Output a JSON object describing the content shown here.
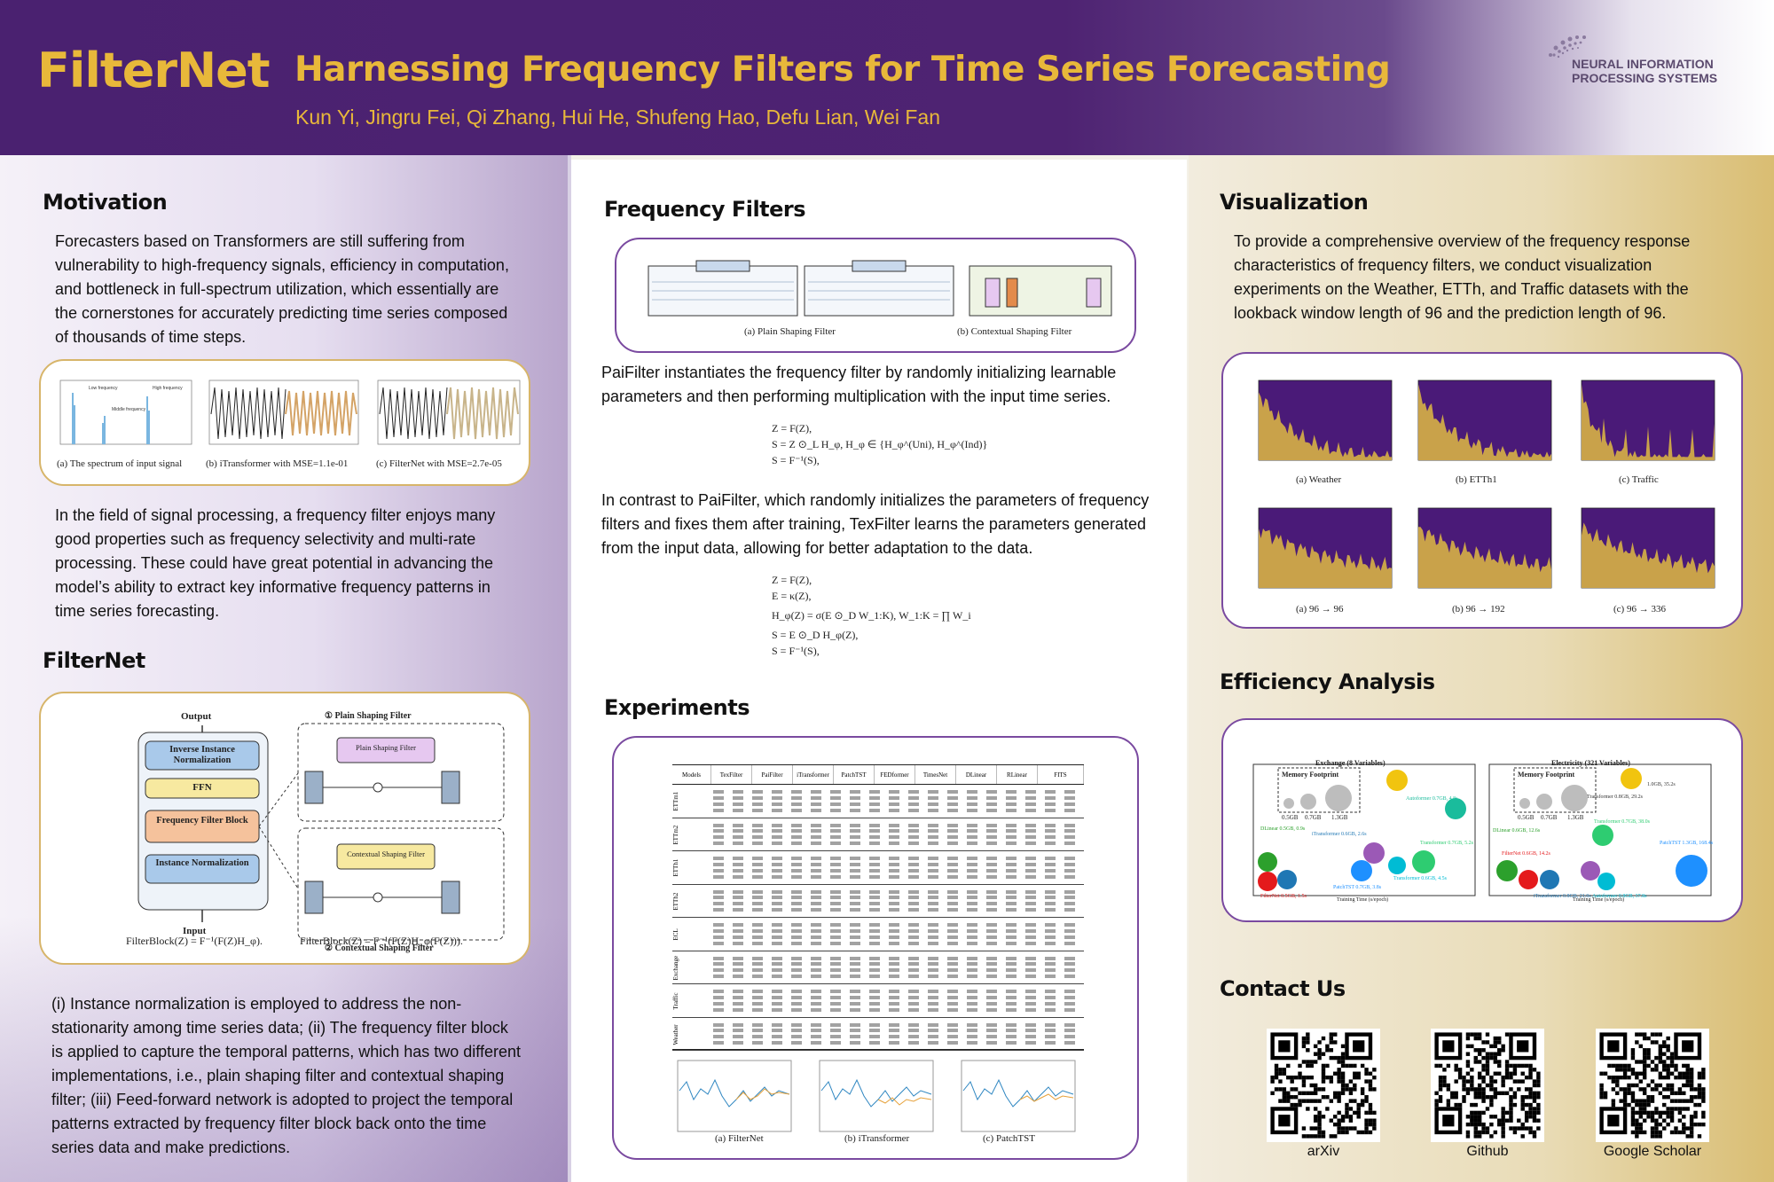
{
  "header": {
    "title": "FilterNet",
    "subtitle": "Harnessing Frequency Filters for Time Series Forecasting",
    "authors": "Kun Yi, Jingru Fei, Qi Zhang, Hui He, Shufeng Hao, Defu Lian, Wei Fan",
    "logo_text_line1": "NEURAL INFORMATION",
    "logo_text_line2": "PROCESSING SYSTEMS",
    "colors": {
      "header_bg": "#4a2170",
      "title": "#e8b83a"
    }
  },
  "left": {
    "motivation_title": "Motivation",
    "motivation_text": "Forecasters based on Transformers are still suffering from vulnerability to high-frequency signals, efficiency in computation, and bottleneck in full-spectrum utilization, which essentially are the cornerstones for accurately predicting time series composed of thousands of time steps.",
    "fig1_captions": [
      "(a) The spectrum of input signal",
      "(b) iTransformer with MSE=1.1e-01",
      "(c) FilterNet with MSE=2.7e-05"
    ],
    "fig1_labels": [
      "Low frequency",
      "Middle frequency",
      "High frequency"
    ],
    "signal_text": "In the field of signal processing, a frequency filter enjoys many good properties such as frequency selectivity and multi-rate processing. These could have great potential in advancing the model’s ability to extract key informative frequency patterns in time series forecasting.",
    "filternet_title": "FilterNet",
    "arch": {
      "output": "Output",
      "input": "Input",
      "inv_norm": "Inverse Instance Normalization",
      "ffn": "FFN",
      "filter_block": "Frequency Filter Block",
      "inst_norm": "Instance Normalization",
      "plain_title": "① Plain Shaping Filter",
      "contextual_title": "② Contextual Shaping Filter",
      "plain_box": "Plain Shaping Filter",
      "contextual_box": "Contextual Shaping Filter",
      "formula_left": "FilterBlock(Z) = F⁻¹(F(Z)H_φ).",
      "formula_right": "FilterBlock(Z) = F⁻¹(F(Z)H_φ(F(Z)))."
    },
    "bottom_text": "(i) Instance normalization is employed to address the non-stationarity among time series data; (ii) The frequency filter block is applied to capture the temporal patterns, which has two different implementations, i.e., plain shaping filter and contextual shaping filter; (iii) Feed-forward network is adopted to project the temporal patterns extracted by frequency filter block back onto the time series data and make predictions."
  },
  "middle": {
    "freq_title": "Frequency Filters",
    "filter_captions": [
      "(a) Plain Shaping Filter",
      "(b) Contextual Shaping Filter"
    ],
    "pai_text": "PaiFilter instantiates the frequency filter by randomly initializing learnable parameters and then performing multiplication with the input time series.",
    "pai_eq": [
      "Z = F(Z),",
      "S = Z ⊙_L H_φ,   H_φ ∈ {H_φ^(Uni), H_φ^(Ind)}",
      "S = F⁻¹(S),"
    ],
    "tex_text": "In contrast to PaiFilter, which randomly initializes the parameters of frequency filters and fixes them after training, TexFilter learns the parameters generated from the input data, allowing for better adaptation to the data.",
    "tex_eq": [
      "Z = F(Z),",
      "E = κ(Z),",
      "H_φ(Z) = σ(E ⊙_D W_1:K),   W_1:K = ∏ W_i",
      "S = E ⊙_D H_φ(Z),",
      "S = F⁻¹(S),"
    ],
    "experiments_title": "Experiments",
    "table_headers": [
      "Models",
      "TexFilter",
      "PaiFilter",
      "iTransformer",
      "PatchTST",
      "FEDformer",
      "TimesNet",
      "DLinear",
      "RLinear",
      "FITS"
    ],
    "table_datasets": [
      "ETTm1",
      "ETTm2",
      "ETTh1",
      "ETTh2",
      "ECL",
      "Exchange",
      "Traffic",
      "Weather"
    ],
    "exp_captions": [
      "(a) FilterNet",
      "(b) iTransformer",
      "(c) PatchTST"
    ]
  },
  "right": {
    "vis_title": "Visualization",
    "vis_text": "To provide a comprehensive overview of the frequency response characteristics of frequency filters, we conduct visualization experiments on the Weather, ETTh, and Traffic datasets with the lookback window length of 96 and the prediction length of 96.",
    "vis_captions_top": [
      "(a) Weather",
      "(b) ETTh1",
      "(c) Traffic"
    ],
    "vis_captions_bottom": [
      "(a) 96 → 96",
      "(b) 96 → 192",
      "(c) 96 → 336"
    ],
    "eff_title": "Efficiency Analysis",
    "eff_left": {
      "title": "Exchange (8 Variables)",
      "legend": "Memory Footprint",
      "sizes": [
        "0.5GB",
        "0.7GB",
        "1.3GB"
      ],
      "labels": [
        "DLinear 0.5GB, 0.9s",
        "iTransformer 0.6GB, 2.6s",
        "FilterNet 0.5GB, 1.5s",
        "PatchTST 0.7GB, 3.8s",
        "Transformer 0.6GB, 4.5s",
        "Autoformer 0.7GB, 4.8s",
        "Transformer 0.7GB, 5.2s"
      ],
      "xlabel": "Training Time (s/epoch)"
    },
    "eff_right": {
      "title": "Electricity (321 Variables)",
      "legend": "Memory Footprint",
      "sizes": [
        "0.5GB",
        "0.7GB",
        "1.3GB"
      ],
      "labels": [
        "DLinear 0.6GB, 12.6s",
        "FilterNet 0.6GB, 14.2s",
        "iTransformer 0.8GB, 21.0s",
        "Autoformer 0.8GB, 37.8s",
        "Transformer 0.7GB, 38.0s",
        "PatchTST 1.3GB, 168.4s",
        "Transformer 0.8GB, 29.2s",
        "1.0GB, 35.2s"
      ],
      "xlabel": "Training Time (s/epoch)"
    },
    "contact_title": "Contact  Us",
    "qr_labels": [
      "arXiv",
      "Github",
      "Google Scholar"
    ]
  }
}
